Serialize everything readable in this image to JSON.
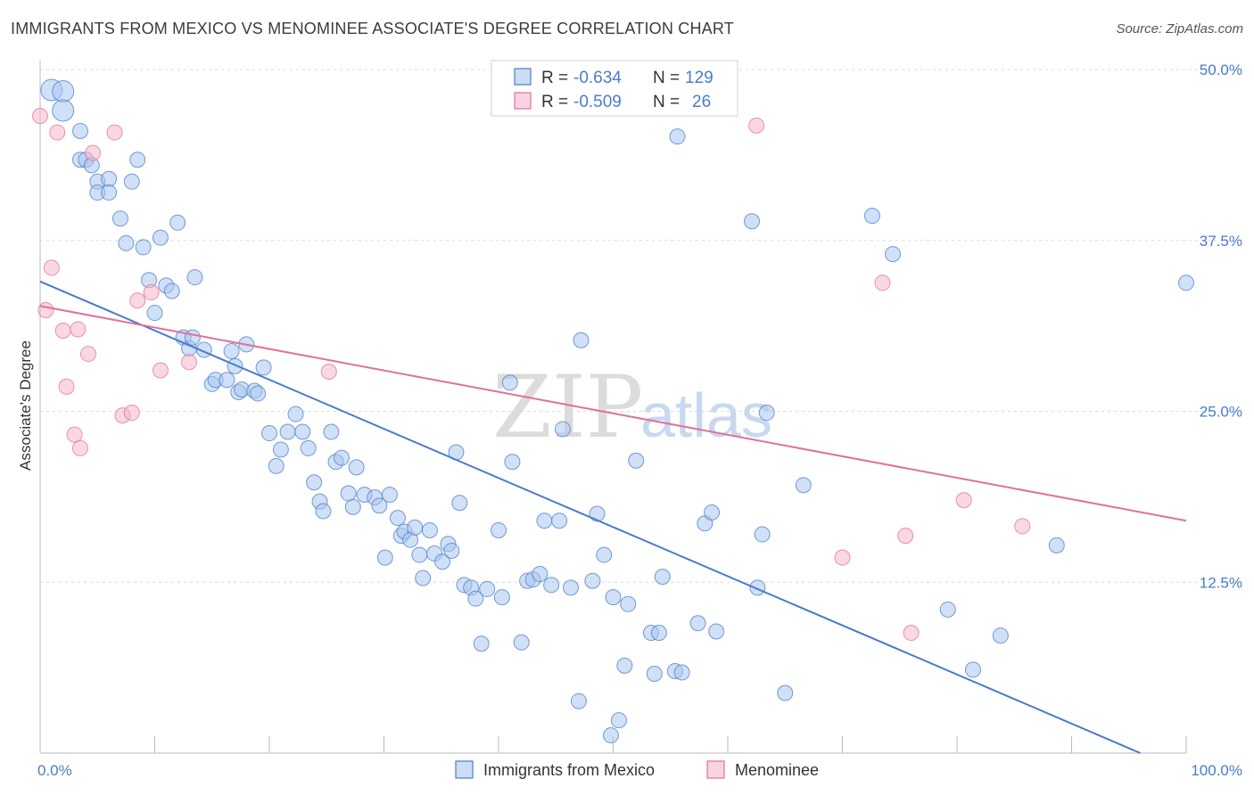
{
  "title": "IMMIGRANTS FROM MEXICO VS MENOMINEE ASSOCIATE'S DEGREE CORRELATION CHART",
  "source": "Source: ZipAtlas.com",
  "watermark": {
    "zip": "ZIP",
    "atlas": "atlas"
  },
  "colors": {
    "blue": "#4a7cc9",
    "blue_fill": "#a9c6ee",
    "pink": "#e0709a",
    "pink_fill": "#f5b8cb",
    "grid": "#d9d9d9"
  },
  "legend": {
    "r_label": "R =",
    "n_label": "N =",
    "rows": [
      {
        "r": "-0.634",
        "n": "129"
      },
      {
        "r": "-0.509",
        "n": "26"
      }
    ]
  },
  "chart_data": {
    "type": "scatter",
    "title": "IMMIGRANTS FROM MEXICO VS MENOMINEE ASSOCIATE'S DEGREE CORRELATION CHART",
    "xlabel": "",
    "ylabel": "Associate's Degree",
    "xlim": [
      0,
      100
    ],
    "ylim": [
      0,
      50
    ],
    "x_tick_labels": [
      "0.0%",
      "100.0%"
    ],
    "y_ticks": [
      12.5,
      25.0,
      37.5,
      50.0
    ],
    "y_tick_labels": [
      "12.5%",
      "25.0%",
      "37.5%",
      "50.0%"
    ],
    "grid": "horizontal dashed",
    "legend_position": "top-center",
    "series": [
      {
        "name": "Immigrants from Mexico",
        "color": "#4a7cc9",
        "trend": {
          "x": [
            0,
            96
          ],
          "y": [
            34.5,
            0
          ]
        },
        "points": [
          [
            1,
            48.5
          ],
          [
            2,
            48.4
          ],
          [
            2,
            47.0
          ],
          [
            3.5,
            45.5
          ],
          [
            3.5,
            43.4
          ],
          [
            4,
            43.4
          ],
          [
            4.5,
            43.0
          ],
          [
            5,
            41.8
          ],
          [
            5,
            41.0
          ],
          [
            6,
            42.0
          ],
          [
            6,
            41.0
          ],
          [
            7,
            39.1
          ],
          [
            7.5,
            37.3
          ],
          [
            8,
            41.8
          ],
          [
            8.5,
            43.4
          ],
          [
            9,
            37.0
          ],
          [
            9.5,
            34.6
          ],
          [
            10,
            32.2
          ],
          [
            10.5,
            37.7
          ],
          [
            11,
            34.2
          ],
          [
            11.5,
            33.8
          ],
          [
            12,
            38.8
          ],
          [
            12.5,
            30.4
          ],
          [
            13,
            29.6
          ],
          [
            13.3,
            30.4
          ],
          [
            13.5,
            34.8
          ],
          [
            14.3,
            29.5
          ],
          [
            15,
            27.0
          ],
          [
            15.3,
            27.3
          ],
          [
            16.3,
            27.3
          ],
          [
            16.7,
            29.4
          ],
          [
            17,
            28.3
          ],
          [
            17.3,
            26.4
          ],
          [
            17.6,
            26.6
          ],
          [
            18,
            29.9
          ],
          [
            18.7,
            26.5
          ],
          [
            19,
            26.3
          ],
          [
            19.5,
            28.2
          ],
          [
            20,
            23.4
          ],
          [
            20.6,
            21.0
          ],
          [
            21,
            22.2
          ],
          [
            21.6,
            23.5
          ],
          [
            22.3,
            24.8
          ],
          [
            22.9,
            23.5
          ],
          [
            23.4,
            22.3
          ],
          [
            23.9,
            19.8
          ],
          [
            24.4,
            18.4
          ],
          [
            24.7,
            17.7
          ],
          [
            25.4,
            23.5
          ],
          [
            25.8,
            21.3
          ],
          [
            26.3,
            21.6
          ],
          [
            26.9,
            19.0
          ],
          [
            27.3,
            18.0
          ],
          [
            27.6,
            20.9
          ],
          [
            28.3,
            18.9
          ],
          [
            29.2,
            18.7
          ],
          [
            29.6,
            18.1
          ],
          [
            30.1,
            14.3
          ],
          [
            30.5,
            18.9
          ],
          [
            31.2,
            17.2
          ],
          [
            31.5,
            15.9
          ],
          [
            31.8,
            16.2
          ],
          [
            32.3,
            15.6
          ],
          [
            32.7,
            16.5
          ],
          [
            33.1,
            14.5
          ],
          [
            33.4,
            12.8
          ],
          [
            34,
            16.3
          ],
          [
            34.4,
            14.6
          ],
          [
            35.1,
            14.0
          ],
          [
            35.6,
            15.3
          ],
          [
            35.9,
            14.8
          ],
          [
            36.3,
            22.0
          ],
          [
            36.6,
            18.3
          ],
          [
            37,
            12.3
          ],
          [
            37.6,
            12.1
          ],
          [
            38,
            11.3
          ],
          [
            38.5,
            8.0
          ],
          [
            39,
            12.0
          ],
          [
            40,
            16.3
          ],
          [
            40.3,
            11.4
          ],
          [
            41,
            27.1
          ],
          [
            41.2,
            21.3
          ],
          [
            42,
            8.1
          ],
          [
            42.5,
            12.6
          ],
          [
            43,
            12.7
          ],
          [
            43.6,
            13.1
          ],
          [
            44,
            17.0
          ],
          [
            44.6,
            12.3
          ],
          [
            45.3,
            17.0
          ],
          [
            45.6,
            23.7
          ],
          [
            46.3,
            12.1
          ],
          [
            47,
            3.8
          ],
          [
            47.2,
            30.2
          ],
          [
            48.2,
            12.6
          ],
          [
            48.6,
            17.5
          ],
          [
            49.2,
            14.5
          ],
          [
            49.8,
            1.3
          ],
          [
            50,
            11.4
          ],
          [
            50.5,
            2.4
          ],
          [
            51,
            6.4
          ],
          [
            51.3,
            10.9
          ],
          [
            52,
            21.4
          ],
          [
            53.3,
            8.8
          ],
          [
            53.6,
            5.8
          ],
          [
            54,
            8.8
          ],
          [
            54.3,
            12.9
          ],
          [
            55.4,
            6.0
          ],
          [
            55.6,
            45.1
          ],
          [
            56,
            5.9
          ],
          [
            57.4,
            9.5
          ],
          [
            58,
            16.8
          ],
          [
            58.6,
            17.6
          ],
          [
            59,
            8.9
          ],
          [
            62.1,
            38.9
          ],
          [
            62.6,
            12.1
          ],
          [
            63,
            16.0
          ],
          [
            63.4,
            24.9
          ],
          [
            65,
            4.4
          ],
          [
            66.6,
            19.6
          ],
          [
            72.6,
            39.3
          ],
          [
            74.4,
            36.5
          ],
          [
            79.2,
            10.5
          ],
          [
            81.4,
            6.1
          ],
          [
            83.8,
            8.6
          ],
          [
            88.7,
            15.2
          ],
          [
            100,
            34.4
          ]
        ]
      },
      {
        "name": "Menominee",
        "color": "#e0709a",
        "trend": {
          "x": [
            0,
            100
          ],
          "y": [
            32.7,
            17.0
          ]
        },
        "points": [
          [
            0,
            46.6
          ],
          [
            0.5,
            32.4
          ],
          [
            1,
            35.5
          ],
          [
            1.5,
            45.4
          ],
          [
            2,
            30.9
          ],
          [
            2.3,
            26.8
          ],
          [
            3,
            23.3
          ],
          [
            3.3,
            31.0
          ],
          [
            3.5,
            22.3
          ],
          [
            4.2,
            29.2
          ],
          [
            4.6,
            43.9
          ],
          [
            6.5,
            45.4
          ],
          [
            7.2,
            24.7
          ],
          [
            8,
            24.9
          ],
          [
            8.5,
            33.1
          ],
          [
            9.7,
            33.7
          ],
          [
            10.5,
            28.0
          ],
          [
            13,
            28.6
          ],
          [
            25.2,
            27.9
          ],
          [
            62.5,
            45.9
          ],
          [
            70,
            14.3
          ],
          [
            73.5,
            34.4
          ],
          [
            75.5,
            15.9
          ],
          [
            76,
            8.8
          ],
          [
            80.6,
            18.5
          ],
          [
            85.7,
            16.6
          ]
        ]
      }
    ]
  }
}
